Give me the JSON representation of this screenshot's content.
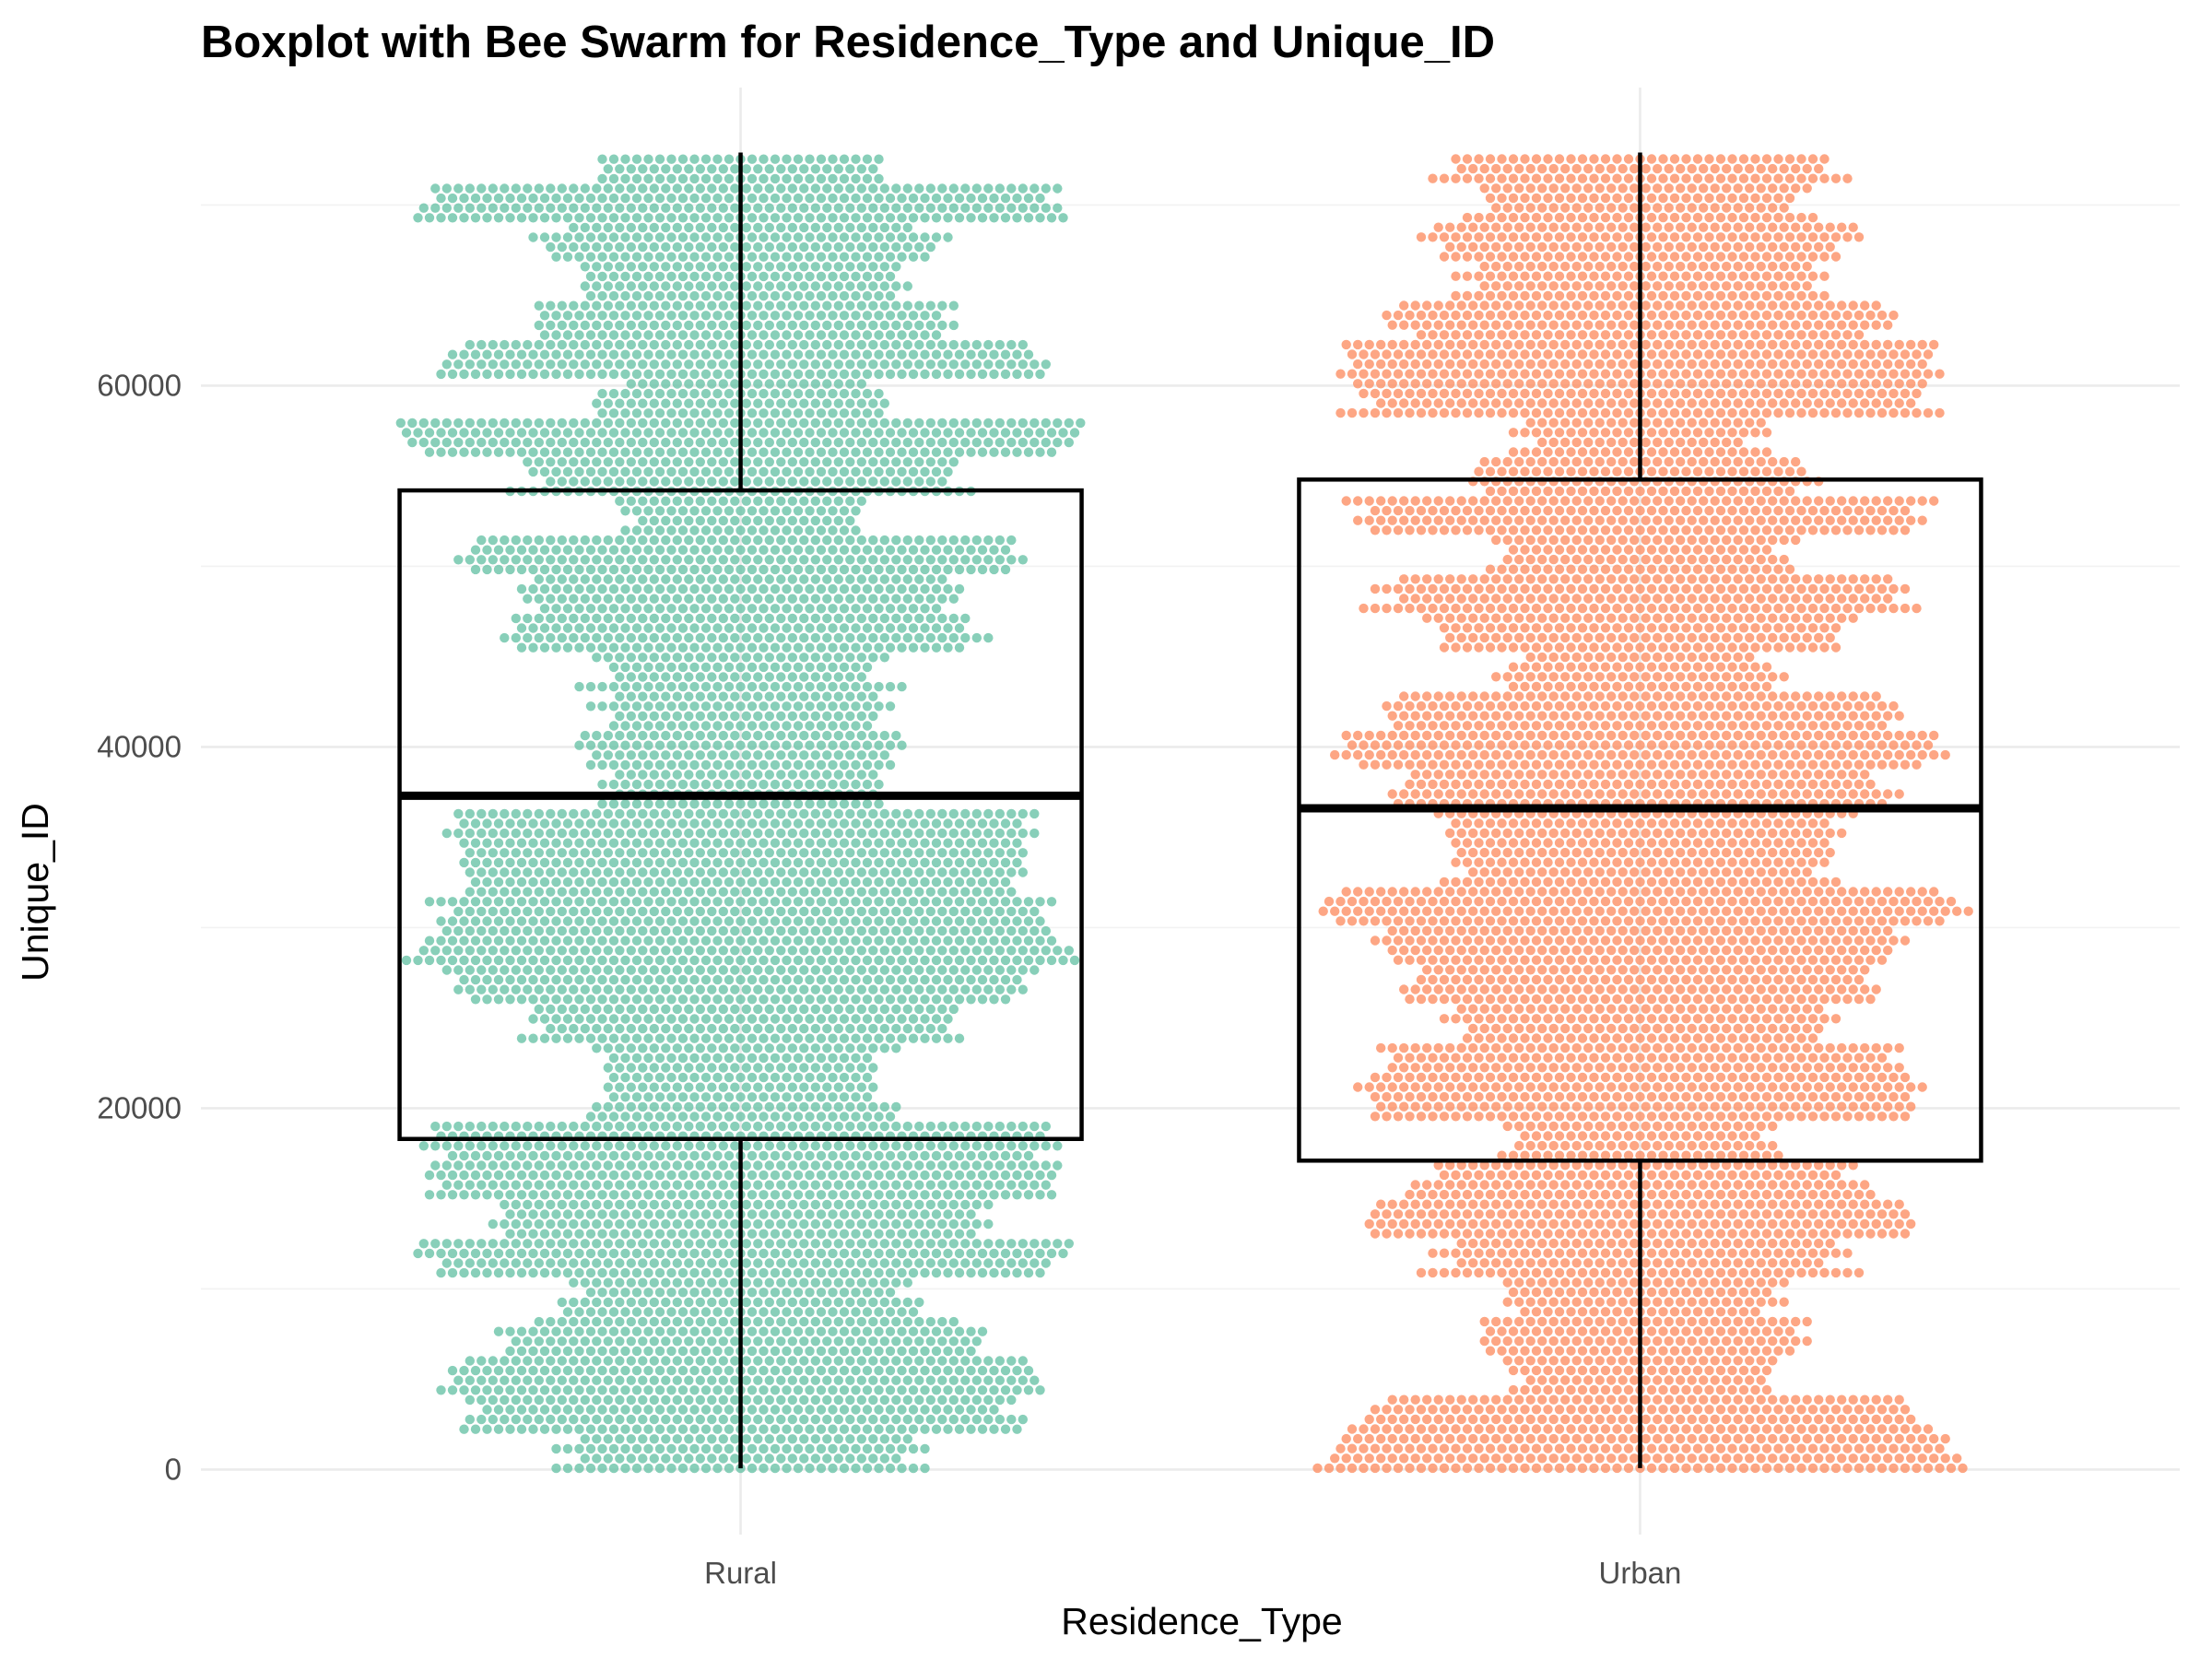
{
  "chart_data": {
    "type": "boxplot",
    "title": "Boxplot with Bee Swarm for Residence_Type and Unique_ID",
    "xlabel": "Residence_Type",
    "ylabel": "Unique_ID",
    "categories": [
      "Rural",
      "Urban"
    ],
    "y_ticks": [
      0,
      20000,
      40000,
      60000
    ],
    "y_tick_labels": [
      "0",
      "20000",
      "40000",
      "60000"
    ],
    "ylim": [
      -3600,
      76500
    ],
    "grid": true,
    "legend": "none",
    "series": [
      {
        "category": "Rural",
        "color": "#66c2a5",
        "min": 67,
        "q1": 18300,
        "median": 37300,
        "q3": 54200,
        "max": 72900
      },
      {
        "category": "Urban",
        "color": "#fc8d62",
        "min": 77,
        "q1": 17100,
        "median": 36600,
        "q3": 54800,
        "max": 72900
      }
    ]
  }
}
